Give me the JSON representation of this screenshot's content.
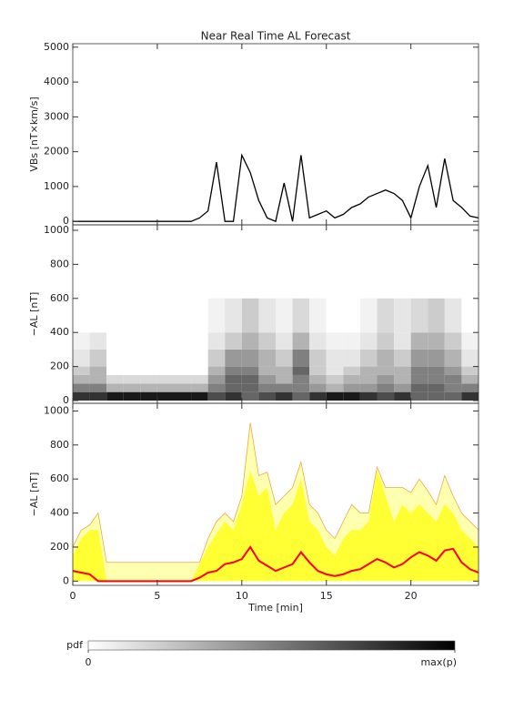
{
  "chart_data": [
    {
      "type": "line",
      "title": "Near Real Time AL Forecast",
      "ylabel": "VBs [nT×km/s]",
      "color": "#000000",
      "x": [
        0,
        0.5,
        1,
        1.5,
        2,
        2.5,
        3,
        3.5,
        4,
        4.5,
        5,
        5.5,
        6,
        6.5,
        7,
        7.5,
        8,
        8.5,
        9,
        9.5,
        10,
        10.5,
        11,
        11.5,
        12,
        12.5,
        13,
        13.5,
        14,
        14.5,
        15,
        15.5,
        16,
        16.5,
        17,
        17.5,
        18,
        18.5,
        19,
        19.5,
        20,
        20.5,
        21,
        21.5,
        22,
        22.5,
        23,
        23.5,
        24
      ],
      "values": [
        0,
        0,
        0,
        0,
        0,
        0,
        0,
        0,
        0,
        0,
        0,
        0,
        0,
        0,
        0,
        100,
        300,
        1700,
        0,
        0,
        1900,
        1400,
        600,
        100,
        0,
        1100,
        0,
        1900,
        100,
        200,
        300,
        100,
        200,
        400,
        500,
        700,
        800,
        900,
        800,
        600,
        100,
        1000,
        1600,
        400,
        1800,
        600,
        400,
        150,
        100
      ],
      "xlim": [
        0,
        24
      ],
      "ylim": [
        -100,
        5100
      ],
      "yticks": [
        0,
        1000,
        2000,
        3000,
        4000,
        5000
      ]
    },
    {
      "type": "heatmap",
      "ylabel": "−AL [nT]",
      "x_edges": [
        0,
        1,
        2,
        3,
        4,
        5,
        6,
        7,
        8,
        9,
        10,
        11,
        12,
        13,
        14,
        15,
        16,
        17,
        18,
        19,
        20,
        21,
        22,
        23,
        24
      ],
      "y_edges": [
        0,
        50,
        100,
        150,
        200,
        300,
        400,
        600
      ],
      "z": [
        [
          0.8,
          0.8,
          0.9,
          0.9,
          0.9,
          0.9,
          0.9,
          0.9,
          0.7,
          0.8,
          0.6,
          0.7,
          0.8,
          0.6,
          0.8,
          0.9,
          0.9,
          0.8,
          0.7,
          0.8,
          0.6,
          0.6,
          0.6,
          0.8
        ],
        [
          0.5,
          0.5,
          0.3,
          0.3,
          0.3,
          0.3,
          0.3,
          0.3,
          0.5,
          0.6,
          0.6,
          0.5,
          0.5,
          0.5,
          0.4,
          0.3,
          0.4,
          0.4,
          0.5,
          0.4,
          0.6,
          0.6,
          0.5,
          0.5
        ],
        [
          0.3,
          0.3,
          0.15,
          0.15,
          0.15,
          0.15,
          0.15,
          0.15,
          0.4,
          0.6,
          0.6,
          0.4,
          0.3,
          0.5,
          0.3,
          0.2,
          0.3,
          0.3,
          0.4,
          0.3,
          0.5,
          0.5,
          0.5,
          0.3
        ],
        [
          0.2,
          0.3,
          0,
          0,
          0,
          0,
          0,
          0,
          0.3,
          0.5,
          0.5,
          0.3,
          0.3,
          0.6,
          0.2,
          0.1,
          0.2,
          0.3,
          0.3,
          0.3,
          0.5,
          0.5,
          0.4,
          0.2
        ],
        [
          0.1,
          0.2,
          0,
          0,
          0,
          0,
          0,
          0,
          0.2,
          0.4,
          0.4,
          0.3,
          0.2,
          0.5,
          0.2,
          0.1,
          0.1,
          0.2,
          0.3,
          0.2,
          0.4,
          0.4,
          0.3,
          0.1
        ],
        [
          0.05,
          0.1,
          0,
          0,
          0,
          0,
          0,
          0,
          0.1,
          0.2,
          0.3,
          0.2,
          0.1,
          0.3,
          0.1,
          0.05,
          0.05,
          0.1,
          0.2,
          0.1,
          0.3,
          0.3,
          0.2,
          0.05
        ],
        [
          0,
          0,
          0,
          0,
          0,
          0,
          0,
          0,
          0.05,
          0.1,
          0.2,
          0.1,
          0.05,
          0.15,
          0.05,
          0,
          0,
          0.05,
          0.15,
          0.1,
          0.15,
          0.2,
          0.1,
          0
        ]
      ],
      "xlim": [
        0,
        24
      ],
      "ylim": [
        -16,
        1032
      ],
      "yticks": [
        0,
        200,
        400,
        600,
        800,
        1000
      ],
      "colorbar": {
        "label": "pdf",
        "ticks": [
          0,
          {
            "value": 1,
            "label": "max(p)"
          }
        ]
      }
    },
    {
      "type": "band",
      "ylabel": "−AL [nT]",
      "xlabel": "Time [min]",
      "x": [
        0,
        0.5,
        1,
        1.5,
        2,
        2.5,
        3,
        3.5,
        4,
        4.5,
        5,
        5.5,
        6,
        6.5,
        7,
        7.5,
        8,
        8.5,
        9,
        9.5,
        10,
        10.5,
        11,
        11.5,
        12,
        12.5,
        13,
        13.5,
        14,
        14.5,
        15,
        15.5,
        16,
        16.5,
        17,
        17.5,
        18,
        18.5,
        19,
        19.5,
        20,
        20.5,
        21,
        21.5,
        22,
        22.5,
        23,
        23.5,
        24
      ],
      "series": [
        {
          "kind": "area",
          "color": "#ffffb0",
          "line_color": "#f0a848",
          "values": [
            200,
            300,
            330,
            400,
            110,
            110,
            110,
            110,
            110,
            110,
            110,
            110,
            110,
            110,
            110,
            110,
            250,
            350,
            400,
            350,
            500,
            930,
            620,
            640,
            450,
            500,
            550,
            700,
            450,
            400,
            300,
            250,
            350,
            450,
            400,
            400,
            670,
            550,
            550,
            550,
            520,
            600,
            530,
            450,
            620,
            500,
            400,
            350,
            300
          ]
        },
        {
          "kind": "area",
          "color": "#ffff33",
          "values": [
            150,
            250,
            300,
            300,
            0,
            0,
            0,
            0,
            0,
            0,
            0,
            0,
            0,
            0,
            0,
            100,
            200,
            280,
            350,
            300,
            450,
            650,
            500,
            550,
            300,
            400,
            450,
            600,
            350,
            300,
            200,
            150,
            250,
            300,
            300,
            350,
            650,
            500,
            350,
            450,
            400,
            450,
            400,
            350,
            450,
            400,
            300,
            250,
            200
          ]
        },
        {
          "kind": "line",
          "color": "#ff0000",
          "values": [
            60,
            50,
            40,
            0,
            0,
            0,
            0,
            0,
            0,
            0,
            0,
            0,
            0,
            0,
            0,
            20,
            50,
            60,
            100,
            110,
            130,
            200,
            120,
            90,
            60,
            80,
            100,
            170,
            110,
            60,
            40,
            30,
            40,
            60,
            70,
            100,
            130,
            110,
            80,
            100,
            140,
            170,
            150,
            120,
            180,
            190,
            110,
            70,
            50
          ]
        }
      ],
      "xlim": [
        0,
        24
      ],
      "xticks": [
        0,
        5,
        10,
        15,
        20
      ],
      "ylim": [
        -25,
        1045
      ],
      "yticks": [
        0,
        200,
        400,
        600,
        800,
        1000
      ]
    }
  ]
}
